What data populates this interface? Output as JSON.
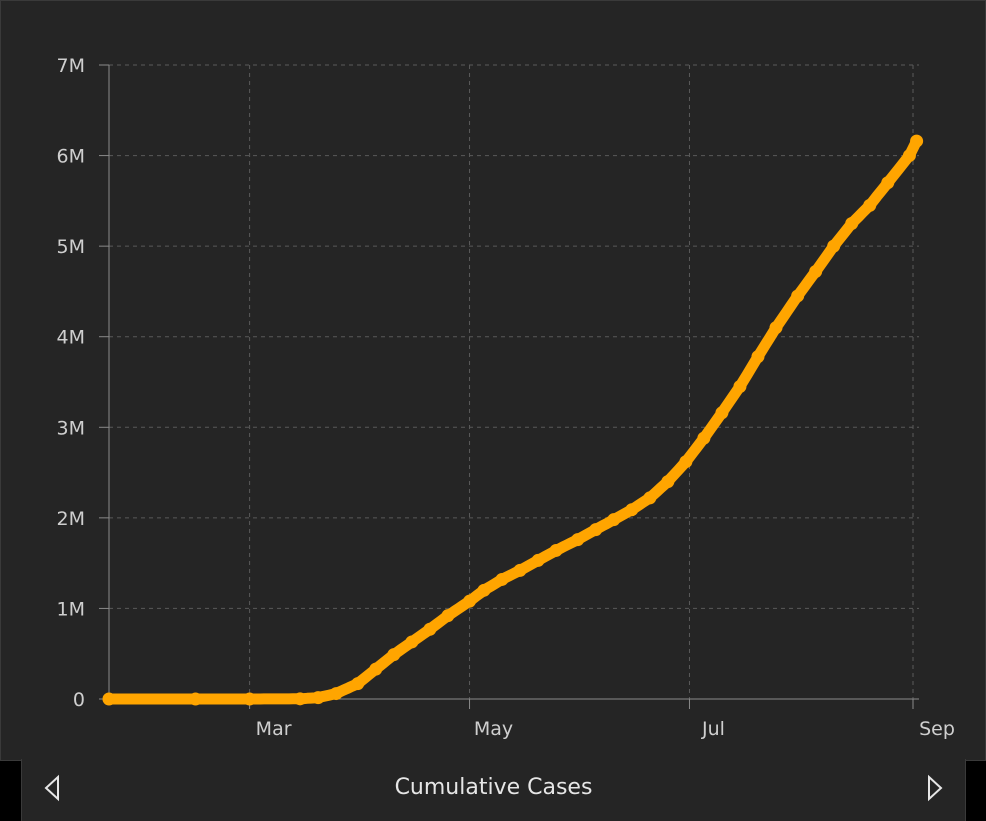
{
  "footer": {
    "title": "Cumulative Cases",
    "prev_icon": "triangle-left-icon",
    "next_icon": "triangle-right-icon"
  },
  "colors": {
    "background": "#252525",
    "line": "#FFA500",
    "grid": "#5a5a5a",
    "axis": "#8a8a8a",
    "tick_text": "#cfcfcf"
  },
  "chart_data": {
    "type": "line",
    "title": "",
    "xlabel": "",
    "ylabel": "",
    "x_ticks": [
      {
        "label": "Mar",
        "date": "2020-03-01"
      },
      {
        "label": "May",
        "date": "2020-05-01"
      },
      {
        "label": "Jul",
        "date": "2020-07-01"
      },
      {
        "label": "Sep",
        "date": "2020-09-01"
      }
    ],
    "y_ticks": [
      {
        "label": "0",
        "value": 0
      },
      {
        "label": "1M",
        "value": 1000000
      },
      {
        "label": "2M",
        "value": 2000000
      },
      {
        "label": "3M",
        "value": 3000000
      },
      {
        "label": "4M",
        "value": 4000000
      },
      {
        "label": "5M",
        "value": 5000000
      },
      {
        "label": "6M",
        "value": 6000000
      },
      {
        "label": "7M",
        "value": 7000000
      }
    ],
    "xlim": [
      "2020-01-22",
      "2020-09-01"
    ],
    "ylim": [
      0,
      7000000
    ],
    "grid": true,
    "series": [
      {
        "color": "#FFA500",
        "points": [
          [
            "2020-01-22",
            0
          ],
          [
            "2020-02-15",
            0
          ],
          [
            "2020-03-01",
            0
          ],
          [
            "2020-03-15",
            2000
          ],
          [
            "2020-03-20",
            15000
          ],
          [
            "2020-03-25",
            60000
          ],
          [
            "2020-03-31",
            170000
          ],
          [
            "2020-04-05",
            330000
          ],
          [
            "2020-04-10",
            490000
          ],
          [
            "2020-04-15",
            630000
          ],
          [
            "2020-04-20",
            770000
          ],
          [
            "2020-04-25",
            920000
          ],
          [
            "2020-05-01",
            1080000
          ],
          [
            "2020-05-05",
            1200000
          ],
          [
            "2020-05-10",
            1320000
          ],
          [
            "2020-05-15",
            1420000
          ],
          [
            "2020-05-20",
            1530000
          ],
          [
            "2020-05-25",
            1640000
          ],
          [
            "2020-05-31",
            1760000
          ],
          [
            "2020-06-05",
            1870000
          ],
          [
            "2020-06-10",
            1980000
          ],
          [
            "2020-06-15",
            2090000
          ],
          [
            "2020-06-20",
            2220000
          ],
          [
            "2020-06-25",
            2400000
          ],
          [
            "2020-06-30",
            2620000
          ],
          [
            "2020-07-05",
            2880000
          ],
          [
            "2020-07-10",
            3160000
          ],
          [
            "2020-07-15",
            3450000
          ],
          [
            "2020-07-20",
            3780000
          ],
          [
            "2020-07-25",
            4100000
          ],
          [
            "2020-07-31",
            4450000
          ],
          [
            "2020-08-05",
            4720000
          ],
          [
            "2020-08-10",
            5000000
          ],
          [
            "2020-08-15",
            5250000
          ],
          [
            "2020-08-20",
            5450000
          ],
          [
            "2020-08-25",
            5700000
          ],
          [
            "2020-08-31",
            6000000
          ],
          [
            "2020-09-02",
            6160000
          ]
        ]
      }
    ]
  }
}
